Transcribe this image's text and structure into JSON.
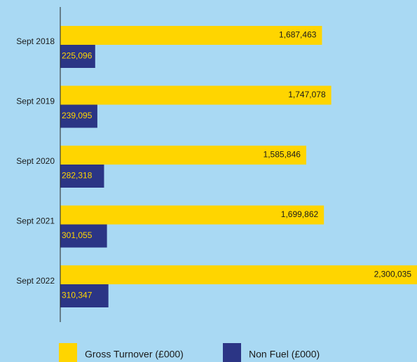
{
  "chart_data": {
    "type": "hbar",
    "categories": [
      "Sept 2018",
      "Sept 2019",
      "Sept 2020",
      "Sept 2021",
      "Sept 2022"
    ],
    "series": [
      {
        "name": "Gross Turnover (£000)",
        "color": "#ffd500",
        "values": [
          1687463,
          1747078,
          1585846,
          1699862,
          2300035
        ],
        "value_labels": [
          "1,687,463",
          "1,747,078",
          "1,585,846",
          "1,699,862",
          "2,300,035"
        ]
      },
      {
        "name": "Non Fuel (£000)",
        "color": "#2b3585",
        "values": [
          225096,
          239095,
          282318,
          301055,
          310347
        ],
        "value_labels": [
          "225,096",
          "239,095",
          "282,318",
          "301,055",
          "310,347"
        ]
      }
    ]
  }
}
